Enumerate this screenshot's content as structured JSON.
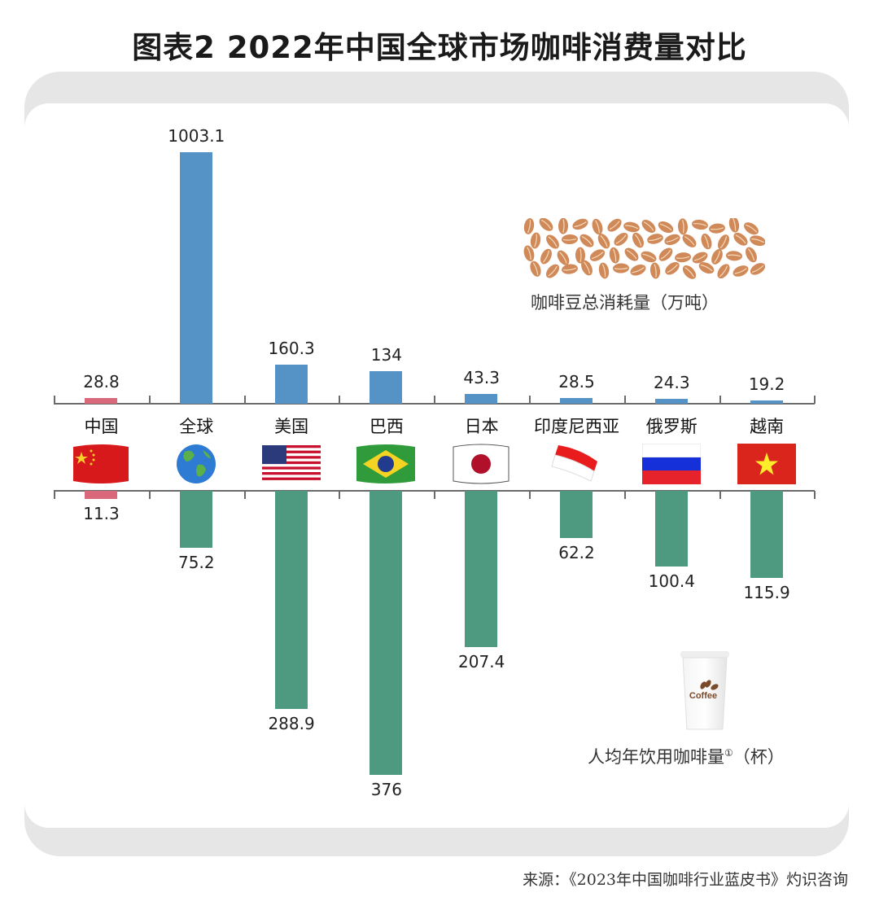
{
  "title": "图表2  2022年中国全球市场咖啡消费量对比",
  "colors": {
    "bean_bar": "#5592c6",
    "cup_bar": "#4e9a80",
    "china_bar": "#d9687a",
    "axis": "#6a6a6a",
    "panel": "#e6e6e6",
    "bean_icon": "#d08a5a"
  },
  "legend": {
    "top_label": "咖啡豆总消耗量（万吨）",
    "bottom_label": "人均年饮用咖啡量",
    "bottom_sup": "①",
    "bottom_unit": "（杯）",
    "cup_text": "Coffee"
  },
  "source": "来源：《2023年中国咖啡行业蓝皮书》灼识咨询",
  "chart_data": {
    "type": "bar",
    "title": "图表2  2022年中国全球市场咖啡消费量对比",
    "categories": [
      "中国",
      "全球",
      "美国",
      "巴西",
      "日本",
      "印度尼西亚",
      "俄罗斯",
      "越南"
    ],
    "series": [
      {
        "name": "咖啡豆总消耗量（万吨）",
        "direction": "up",
        "values": [
          28.8,
          1003.1,
          160.3,
          134,
          43.3,
          28.5,
          24.3,
          19.2
        ]
      },
      {
        "name": "人均年饮用咖啡量（杯）",
        "direction": "down",
        "values": [
          11.3,
          75.2,
          288.9,
          376,
          207.4,
          62.2,
          100.4,
          115.9
        ]
      }
    ],
    "labels": {
      "top": [
        "28.8",
        "1003.1",
        "160.3",
        "134",
        "43.3",
        "28.5",
        "24.3",
        "19.2"
      ],
      "bottom": [
        "11.3",
        "75.2",
        "288.9",
        "376",
        "207.4",
        "62.2",
        "100.4",
        "115.9"
      ]
    },
    "flags": [
      "china-flag",
      "globe",
      "usa-flag",
      "brazil-flag",
      "japan-flag",
      "indonesia-flag",
      "russia-flag",
      "vietnam-flag"
    ],
    "xlabel": "",
    "ylabel": "",
    "grid": false,
    "legend_position": "inline-right"
  }
}
